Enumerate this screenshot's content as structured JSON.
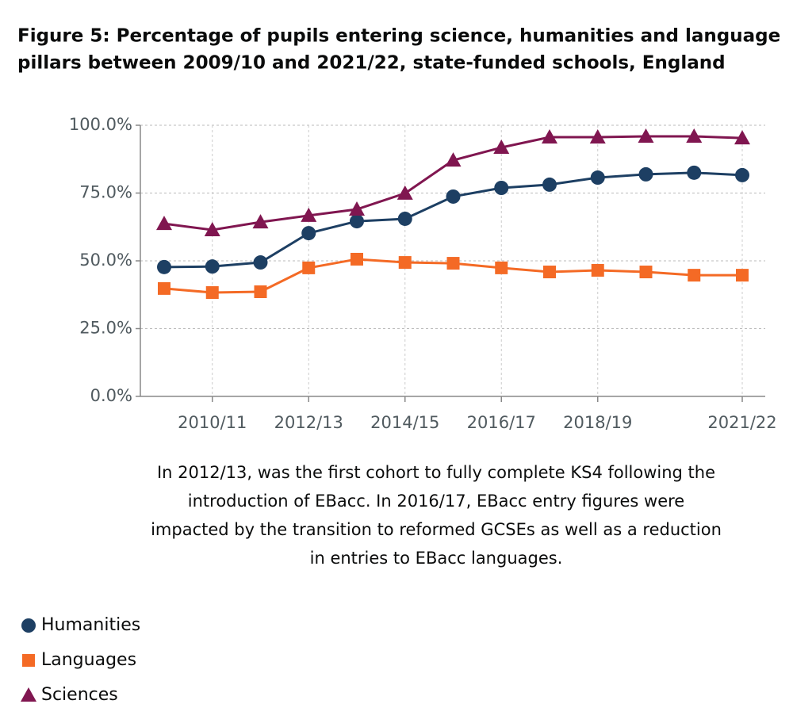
{
  "chart_data": {
    "type": "line",
    "title": [
      "Figure 5: Percentage of pupils entering science, humanities and language",
      "pillars between 2009/10 and 2021/22, state-funded schools, England"
    ],
    "categories": [
      null,
      "2010/11",
      null,
      "2012/13",
      null,
      "2014/15",
      null,
      "2016/17",
      null,
      "2018/19",
      null,
      null,
      "2021/22"
    ],
    "series": [
      {
        "name": "Humanities",
        "color": "#1d3f63",
        "marker": "circle",
        "values": [
          47.7,
          47.9,
          49.4,
          60.2,
          64.6,
          65.5,
          73.7,
          76.9,
          78.1,
          80.7,
          81.9,
          82.5,
          81.6
        ]
      },
      {
        "name": "Languages",
        "color": "#f46a25",
        "marker": "square",
        "values": [
          39.8,
          38.3,
          38.6,
          47.4,
          50.6,
          49.4,
          49.1,
          47.4,
          45.9,
          46.5,
          45.9,
          44.7,
          44.7
        ]
      },
      {
        "name": "Sciences",
        "color": "#801650",
        "marker": "triangle",
        "values": [
          63.7,
          61.4,
          64.3,
          66.7,
          69.0,
          74.9,
          87.1,
          91.8,
          95.6,
          95.6,
          95.9,
          95.9,
          95.3
        ]
      }
    ],
    "ylim": [
      0,
      100
    ],
    "yticks": [
      {
        "value": 0,
        "label": "0.0%"
      },
      {
        "value": 25,
        "label": "25.0%"
      },
      {
        "value": 50,
        "label": "50.0%"
      },
      {
        "value": 75,
        "label": "75.0%"
      },
      {
        "value": 100,
        "label": "100.0%"
      }
    ],
    "grid": true,
    "annotation": [
      "In 2012/13, was the first cohort to fully complete KS4 following the",
      "introduction of EBacc. In 2016/17, EBacc entry figures were",
      "impacted by the transition to reformed GCSEs as well as a reduction",
      "in entries to EBacc languages."
    ],
    "legend": "bottom-left"
  }
}
